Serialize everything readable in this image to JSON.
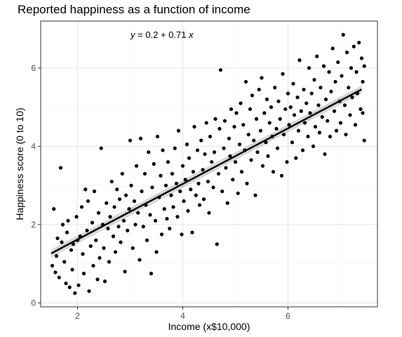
{
  "chart_data": {
    "type": "scatter",
    "title": "Reported happiness as a function of income",
    "xlabel": "Income (x$10,000)",
    "ylabel": "Happiness score (0 to 10)",
    "xlim": [
      1.3,
      7.7
    ],
    "ylim": [
      -0.1,
      7.2
    ],
    "xticks": [
      2,
      4,
      6
    ],
    "yticks": [
      0,
      2,
      4,
      6
    ],
    "grid": true,
    "annotation": {
      "prefix": "y",
      "equation": " = 0.2 + 0.71 ",
      "suffix": "x"
    },
    "regression": {
      "intercept": 0.2,
      "slope": 0.71,
      "x": [
        1.5,
        7.4
      ],
      "band": 0.1
    },
    "points": [
      [
        1.52,
        0.95
      ],
      [
        1.55,
        2.4
      ],
      [
        1.58,
        0.78
      ],
      [
        1.6,
        1.2
      ],
      [
        1.62,
        1.65
      ],
      [
        1.65,
        0.65
      ],
      [
        1.68,
        3.45
      ],
      [
        1.7,
        1.55
      ],
      [
        1.72,
        2.0
      ],
      [
        1.75,
        1.05
      ],
      [
        1.78,
        0.5
      ],
      [
        1.8,
        1.8
      ],
      [
        1.82,
        2.1
      ],
      [
        1.85,
        0.4
      ],
      [
        1.88,
        1.35
      ],
      [
        1.9,
        0.85
      ],
      [
        1.92,
        1.5
      ],
      [
        1.95,
        0.25
      ],
      [
        1.98,
        2.2
      ],
      [
        2.0,
        1.6
      ],
      [
        2.02,
        0.45
      ],
      [
        2.05,
        1.7
      ],
      [
        2.08,
        2.45
      ],
      [
        2.1,
        1.25
      ],
      [
        2.12,
        0.75
      ],
      [
        2.15,
        2.9
      ],
      [
        2.18,
        1.85
      ],
      [
        2.2,
        2.6
      ],
      [
        2.22,
        0.3
      ],
      [
        2.25,
        1.45
      ],
      [
        2.28,
        2.05
      ],
      [
        2.3,
        0.95
      ],
      [
        2.32,
        2.85
      ],
      [
        2.35,
        1.6
      ],
      [
        2.38,
        0.6
      ],
      [
        2.4,
        2.3
      ],
      [
        2.42,
        1.15
      ],
      [
        2.45,
        3.95
      ],
      [
        2.48,
        2.0
      ],
      [
        2.5,
        1.4
      ],
      [
        2.52,
        0.55
      ],
      [
        2.55,
        2.55
      ],
      [
        2.58,
        1.9
      ],
      [
        2.6,
        1.05
      ],
      [
        2.62,
        2.2
      ],
      [
        2.65,
        3.1
      ],
      [
        2.68,
        1.7
      ],
      [
        2.7,
        2.45
      ],
      [
        2.72,
        1.3
      ],
      [
        2.75,
        2.9
      ],
      [
        2.78,
        1.95
      ],
      [
        2.8,
        2.65
      ],
      [
        2.82,
        1.55
      ],
      [
        2.85,
        3.3
      ],
      [
        2.88,
        2.1
      ],
      [
        2.9,
        0.8
      ],
      [
        2.92,
        2.75
      ],
      [
        2.95,
        1.85
      ],
      [
        2.98,
        2.4
      ],
      [
        3.0,
        4.15
      ],
      [
        3.02,
        3.0
      ],
      [
        3.05,
        1.4
      ],
      [
        3.08,
        2.6
      ],
      [
        3.1,
        2.0
      ],
      [
        3.12,
        3.5
      ],
      [
        3.15,
        2.3
      ],
      [
        3.18,
        1.1
      ],
      [
        3.2,
        4.2
      ],
      [
        3.22,
        2.85
      ],
      [
        3.25,
        1.95
      ],
      [
        3.28,
        3.3
      ],
      [
        3.3,
        2.5
      ],
      [
        3.32,
        1.6
      ],
      [
        3.35,
        3.85
      ],
      [
        3.38,
        2.25
      ],
      [
        3.4,
        0.75
      ],
      [
        3.42,
        2.95
      ],
      [
        3.45,
        3.55
      ],
      [
        3.48,
        2.1
      ],
      [
        3.5,
        1.3
      ],
      [
        3.52,
        4.25
      ],
      [
        3.55,
        2.7
      ],
      [
        3.58,
        3.25
      ],
      [
        3.6,
        1.75
      ],
      [
        3.62,
        3.9
      ],
      [
        3.65,
        2.4
      ],
      [
        3.68,
        3.0
      ],
      [
        3.7,
        2.15
      ],
      [
        3.72,
        3.6
      ],
      [
        3.75,
        1.9
      ],
      [
        3.78,
        2.75
      ],
      [
        3.8,
        3.3
      ],
      [
        3.82,
        2.45
      ],
      [
        3.85,
        3.95
      ],
      [
        3.88,
        3.05
      ],
      [
        3.9,
        2.2
      ],
      [
        3.92,
        4.4
      ],
      [
        3.95,
        2.85
      ],
      [
        3.98,
        1.75
      ],
      [
        4.0,
        3.5
      ],
      [
        4.02,
        2.6
      ],
      [
        4.05,
        3.15
      ],
      [
        4.08,
        4.05
      ],
      [
        4.1,
        2.35
      ],
      [
        4.12,
        3.7
      ],
      [
        4.15,
        2.9
      ],
      [
        4.18,
        1.8
      ],
      [
        4.2,
        3.35
      ],
      [
        4.22,
        4.5
      ],
      [
        4.25,
        2.75
      ],
      [
        4.28,
        3.9
      ],
      [
        4.3,
        3.05
      ],
      [
        4.32,
        2.5
      ],
      [
        4.35,
        4.15
      ],
      [
        4.38,
        3.4
      ],
      [
        4.4,
        2.65
      ],
      [
        4.42,
        3.8
      ],
      [
        4.45,
        4.6
      ],
      [
        4.48,
        3.1
      ],
      [
        4.5,
        2.3
      ],
      [
        4.52,
        4.25
      ],
      [
        4.55,
        3.6
      ],
      [
        4.58,
        2.95
      ],
      [
        4.6,
        3.85
      ],
      [
        4.62,
        4.7
      ],
      [
        4.65,
        1.5
      ],
      [
        4.68,
        3.3
      ],
      [
        4.7,
        4.45
      ],
      [
        4.72,
        5.95
      ],
      [
        4.75,
        2.85
      ],
      [
        4.78,
        3.95
      ],
      [
        4.8,
        4.65
      ],
      [
        4.82,
        3.45
      ],
      [
        4.85,
        2.55
      ],
      [
        4.88,
        4.2
      ],
      [
        4.9,
        3.75
      ],
      [
        4.92,
        4.95
      ],
      [
        4.95,
        3.15
      ],
      [
        4.98,
        4.5
      ],
      [
        5.0,
        3.6
      ],
      [
        5.02,
        4.85
      ],
      [
        5.05,
        2.8
      ],
      [
        5.08,
        4.05
      ],
      [
        5.1,
        5.1
      ],
      [
        5.12,
        3.35
      ],
      [
        5.15,
        4.55
      ],
      [
        5.18,
        3.9
      ],
      [
        5.2,
        5.65
      ],
      [
        5.22,
        3.05
      ],
      [
        5.25,
        4.3
      ],
      [
        5.28,
        4.95
      ],
      [
        5.3,
        3.65
      ],
      [
        5.32,
        5.3
      ],
      [
        5.35,
        4.15
      ],
      [
        5.38,
        2.75
      ],
      [
        5.4,
        4.7
      ],
      [
        5.42,
        3.85
      ],
      [
        5.45,
        5.45
      ],
      [
        5.48,
        4.4
      ],
      [
        5.5,
        5.75
      ],
      [
        5.52,
        3.5
      ],
      [
        5.55,
        4.85
      ],
      [
        5.58,
        4.1
      ],
      [
        5.6,
        5.2
      ],
      [
        5.62,
        3.75
      ],
      [
        5.65,
        4.6
      ],
      [
        5.68,
        5.0
      ],
      [
        5.7,
        4.25
      ],
      [
        5.72,
        3.35
      ],
      [
        5.75,
        5.5
      ],
      [
        5.78,
        4.45
      ],
      [
        5.8,
        3.95
      ],
      [
        5.82,
        5.15
      ],
      [
        5.85,
        4.7
      ],
      [
        5.88,
        3.25
      ],
      [
        5.9,
        5.85
      ],
      [
        5.92,
        4.3
      ],
      [
        5.95,
        4.95
      ],
      [
        5.98,
        3.6
      ],
      [
        6.0,
        5.35
      ],
      [
        6.02,
        4.55
      ],
      [
        6.05,
        5.0
      ],
      [
        6.08,
        4.1
      ],
      [
        6.1,
        5.6
      ],
      [
        6.12,
        4.8
      ],
      [
        6.15,
        3.7
      ],
      [
        6.18,
        5.25
      ],
      [
        6.2,
        4.4
      ],
      [
        6.22,
        6.2
      ],
      [
        6.25,
        4.9
      ],
      [
        6.28,
        3.9
      ],
      [
        6.3,
        5.45
      ],
      [
        6.32,
        4.6
      ],
      [
        6.35,
        5.1
      ],
      [
        6.38,
        4.25
      ],
      [
        6.4,
        6.0
      ],
      [
        6.42,
        4.85
      ],
      [
        6.45,
        5.35
      ],
      [
        6.48,
        4.0
      ],
      [
        6.5,
        5.7
      ],
      [
        6.52,
        4.5
      ],
      [
        6.55,
        6.3
      ],
      [
        6.58,
        5.05
      ],
      [
        6.6,
        4.35
      ],
      [
        6.62,
        5.5
      ],
      [
        6.65,
        4.75
      ],
      [
        6.68,
        6.05
      ],
      [
        6.7,
        3.8
      ],
      [
        6.72,
        5.2
      ],
      [
        6.75,
        4.65
      ],
      [
        6.78,
        5.9
      ],
      [
        6.8,
        4.25
      ],
      [
        6.82,
        5.4
      ],
      [
        6.85,
        6.5
      ],
      [
        6.88,
        4.9
      ],
      [
        6.9,
        5.65
      ],
      [
        6.92,
        4.4
      ],
      [
        6.95,
        6.15
      ],
      [
        6.98,
        5.15
      ],
      [
        7.0,
        4.6
      ],
      [
        7.02,
        5.8
      ],
      [
        7.05,
        6.85
      ],
      [
        7.08,
        5.05
      ],
      [
        7.1,
        4.3
      ],
      [
        7.12,
        6.4
      ],
      [
        7.15,
        5.5
      ],
      [
        7.18,
        4.8
      ],
      [
        7.2,
        6.0
      ],
      [
        7.22,
        5.25
      ],
      [
        7.25,
        6.55
      ],
      [
        7.28,
        4.55
      ],
      [
        7.3,
        5.9
      ],
      [
        7.32,
        5.35
      ],
      [
        7.35,
        6.65
      ],
      [
        7.38,
        4.95
      ],
      [
        7.4,
        6.25
      ],
      [
        7.42,
        5.65
      ],
      [
        7.45,
        4.15
      ],
      [
        7.45,
        6.05
      ],
      [
        7.42,
        4.85
      ]
    ]
  }
}
